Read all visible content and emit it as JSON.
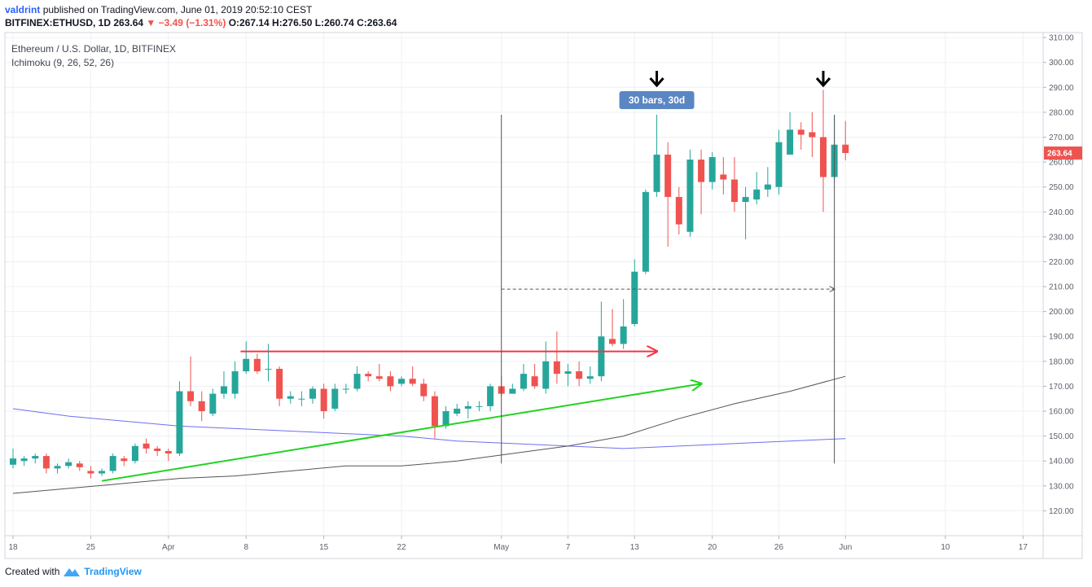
{
  "header": {
    "author": "valdrint",
    "published_text": "published on TradingView.com, June 01, 2019 20:52:10 CEST",
    "symbol_line": "BITFINEX:ETHUSD, 1D",
    "last": "263.64",
    "change": "▼ −3.49 (−1.31%)",
    "ohlc": "O:267.14 H:276.50 L:260.74 C:263.64"
  },
  "overlay": {
    "title": "Ethereum / U.S. Dollar, 1D, BITFINEX",
    "indicator": "Ichimoku (9, 26, 52, 26)"
  },
  "footer": {
    "created_with": "Created with",
    "brand": "TradingView"
  },
  "colors": {
    "up": "#26a69a",
    "down": "#ef5350",
    "grid": "#eef0f3",
    "price_tag": "#ef5350",
    "badge": "#5b86c4"
  },
  "chart_data": {
    "type": "candlestick",
    "title": "Ethereum / U.S. Dollar, 1D, BITFINEX",
    "ylim": [
      110,
      312
    ],
    "y_ticks": [
      120,
      130,
      140,
      150,
      160,
      170,
      180,
      190,
      200,
      210,
      220,
      230,
      240,
      250,
      260,
      270,
      280,
      290,
      300,
      310
    ],
    "y_tick_labels": [
      "120.00",
      "130.00",
      "140.00",
      "150.00",
      "160.00",
      "170.00",
      "180.00",
      "190.00",
      "200.00",
      "210.00",
      "220.00",
      "230.00",
      "240.00",
      "250.00",
      "260.00",
      "270.00",
      "280.00",
      "290.00",
      "300.00",
      "310.00"
    ],
    "x_ticks": [
      {
        "i": 0,
        "label": "18"
      },
      {
        "i": 7,
        "label": "25"
      },
      {
        "i": 14,
        "label": "Apr"
      },
      {
        "i": 21,
        "label": "8"
      },
      {
        "i": 28,
        "label": "15"
      },
      {
        "i": 35,
        "label": "22"
      },
      {
        "i": 44,
        "label": "May"
      },
      {
        "i": 50,
        "label": "7"
      },
      {
        "i": 56,
        "label": "13"
      },
      {
        "i": 63,
        "label": "20"
      },
      {
        "i": 69,
        "label": "26"
      },
      {
        "i": 75,
        "label": "Jun"
      },
      {
        "i": 84,
        "label": "10"
      },
      {
        "i": 91,
        "label": "17"
      }
    ],
    "last_price": "263.64",
    "candles": [
      [
        138.5,
        141,
        145,
        137
      ],
      [
        140,
        141,
        142,
        138
      ],
      [
        141,
        142,
        143,
        139
      ],
      [
        142,
        137,
        143,
        135
      ],
      [
        137,
        138,
        139,
        135
      ],
      [
        138,
        139.5,
        141,
        137
      ],
      [
        139,
        137.5,
        140,
        136
      ],
      [
        136,
        135,
        138,
        133
      ],
      [
        135,
        136,
        137,
        134
      ],
      [
        136,
        142,
        143,
        135
      ],
      [
        141,
        140,
        142,
        138
      ],
      [
        140,
        146,
        147,
        139
      ],
      [
        147,
        145,
        149,
        143
      ],
      [
        145,
        144,
        146,
        142
      ],
      [
        144,
        143,
        145,
        140
      ],
      [
        143,
        168,
        172,
        142
      ],
      [
        168,
        164,
        182,
        162
      ],
      [
        164,
        160,
        168,
        156
      ],
      [
        159,
        167,
        169,
        158
      ],
      [
        167,
        170,
        176,
        165
      ],
      [
        167,
        176,
        180,
        165
      ],
      [
        176,
        181,
        188,
        175
      ],
      [
        181,
        176,
        183,
        175
      ],
      [
        177,
        177,
        187,
        172
      ],
      [
        177,
        165,
        178,
        162
      ],
      [
        165,
        166,
        168,
        163
      ],
      [
        165,
        165,
        168,
        162
      ],
      [
        165,
        169,
        170,
        163
      ],
      [
        169,
        160,
        171,
        157
      ],
      [
        161,
        169,
        171,
        160
      ],
      [
        169,
        169,
        171,
        167
      ],
      [
        169,
        175,
        178,
        168
      ],
      [
        175,
        174,
        176,
        172
      ],
      [
        174,
        173,
        179,
        172
      ],
      [
        174,
        170,
        176,
        168
      ],
      [
        171,
        173,
        174,
        170
      ],
      [
        173,
        171,
        178,
        170
      ],
      [
        171,
        166,
        173,
        164
      ],
      [
        166,
        154,
        168,
        149
      ],
      [
        154,
        160,
        162,
        153
      ],
      [
        159,
        161,
        163,
        158
      ],
      [
        161,
        162,
        164,
        157
      ],
      [
        162,
        162,
        164,
        160
      ],
      [
        162,
        170,
        171,
        160
      ],
      [
        170,
        167,
        174,
        166
      ],
      [
        167,
        169,
        171,
        168
      ],
      [
        169,
        175,
        179,
        168
      ],
      [
        174,
        170,
        179,
        169
      ],
      [
        169,
        180,
        188,
        167
      ],
      [
        180,
        175,
        192,
        171
      ],
      [
        175,
        176,
        179,
        170
      ],
      [
        176,
        173,
        180,
        170
      ],
      [
        173,
        174,
        178,
        171
      ],
      [
        174,
        190,
        204,
        172
      ],
      [
        189,
        187,
        201,
        186
      ],
      [
        187,
        194,
        205,
        185
      ],
      [
        195,
        216,
        221,
        194
      ],
      [
        216,
        248,
        249,
        215
      ],
      [
        248,
        263,
        279,
        246
      ],
      [
        263,
        246,
        268,
        226
      ],
      [
        246,
        235,
        250,
        231
      ],
      [
        232,
        261,
        265,
        230
      ],
      [
        261,
        252,
        265,
        239
      ],
      [
        252,
        262,
        264,
        249
      ],
      [
        255,
        253,
        262,
        247
      ],
      [
        253,
        244,
        262,
        240
      ],
      [
        244,
        246,
        250,
        229
      ],
      [
        245,
        249,
        256,
        243
      ],
      [
        249,
        251,
        258,
        246
      ],
      [
        250,
        268,
        273,
        247
      ],
      [
        263,
        273,
        280,
        265
      ],
      [
        273,
        271,
        276,
        265
      ],
      [
        272,
        270,
        280,
        262
      ],
      [
        270,
        254,
        289,
        240
      ],
      [
        254,
        267,
        279,
        252
      ],
      [
        267,
        263.64,
        276.5,
        260.74
      ]
    ],
    "kijun_line": {
      "x": [
        0,
        5,
        10,
        15,
        20,
        25,
        30,
        35,
        40,
        45,
        50,
        55,
        60,
        65,
        70,
        75
      ],
      "y": [
        127,
        129,
        131,
        133,
        134,
        136,
        138,
        138,
        140,
        143,
        146,
        150,
        157,
        163,
        168,
        174
      ]
    },
    "senkou_line": {
      "x": [
        0,
        5,
        10,
        15,
        20,
        25,
        30,
        35,
        40,
        45,
        50,
        55,
        60,
        65,
        70,
        75
      ],
      "y": [
        161,
        158,
        156,
        154,
        153,
        152,
        151,
        150,
        148,
        147,
        146,
        145,
        146,
        147,
        148,
        149
      ]
    },
    "annotations": {
      "range_badge": "30 bars, 30d",
      "arrows_down": [
        58,
        73
      ],
      "range_start_index": 44,
      "range_end_index": 74,
      "range_level": 209,
      "range_vline_low": 139,
      "range_vline_high": 279,
      "resistance_line": {
        "x1": 20.5,
        "x2": 58,
        "y": 184
      },
      "support_line": {
        "x1": 8,
        "x2": 62,
        "y1": 132,
        "y2": 171
      }
    }
  }
}
